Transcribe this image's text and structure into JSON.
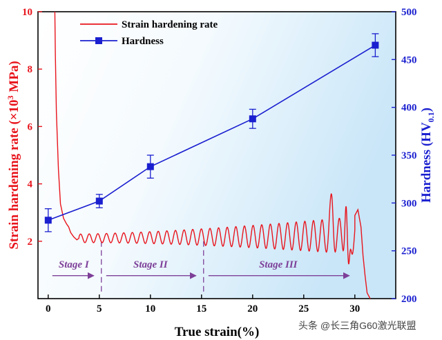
{
  "chart_data": {
    "type": "line",
    "xlabel": "True strain(%)",
    "ylabel_left": {
      "base": "Strain hardening rate (×10",
      "sup": "3",
      "tail": " MPa)"
    },
    "ylabel_right": {
      "base": "Hardness (HV",
      "sub": "0.1",
      "tail": ")"
    },
    "x_ticks": [
      0,
      5,
      10,
      15,
      20,
      25,
      30
    ],
    "y_left_ticks": [
      2,
      4,
      6,
      8,
      10
    ],
    "y_right_ticks": [
      200,
      250,
      300,
      350,
      400,
      450,
      500
    ],
    "x_range": [
      -1,
      34
    ],
    "y_left_range": [
      0,
      10
    ],
    "y_right_range": [
      200,
      500
    ],
    "grid": false,
    "legend": {
      "placement": "top-left",
      "entries": [
        {
          "label": "Strain hardening rate",
          "color": "#e8141c",
          "style": "line"
        },
        {
          "label": "Hardness",
          "color": "#1a1fcf",
          "style": "line-square"
        }
      ]
    },
    "series": [
      {
        "name": "Hardness",
        "axis": "right",
        "color": "#1a1fcf",
        "x": [
          0,
          5,
          10,
          20,
          32
        ],
        "y": [
          282,
          302,
          338,
          388,
          465
        ],
        "error": [
          12,
          7,
          12,
          10,
          12
        ]
      },
      {
        "name": "Strain hardening rate",
        "axis": "left",
        "color": "#e8141c",
        "x": [
          0.65,
          0.7,
          0.8,
          1.0,
          1.2,
          1.5,
          1.8,
          2.0,
          2.2,
          2.5,
          2.8,
          3.0,
          30.0,
          30.3,
          30.6,
          30.8,
          31.0,
          31.2,
          31.5
        ],
        "y": [
          10.0,
          8.5,
          6.5,
          4.5,
          3.3,
          2.8,
          2.6,
          2.5,
          2.3,
          2.15,
          2.05,
          2.1,
          2.9,
          3.1,
          2.5,
          1.5,
          0.8,
          0.2,
          0.0
        ]
      }
    ],
    "oscillation": {
      "x_start": 3.0,
      "x_end": 30.0,
      "cycles": 32,
      "baseline": [
        2.1,
        2.2
      ],
      "amplitude_start": 0.15,
      "amplitude_end": 0.65,
      "spikes": [
        {
          "x": 27.7,
          "y": 3.65
        },
        {
          "x": 29.2,
          "y": 3.65
        },
        {
          "x": 29.4,
          "y": 1.2
        }
      ]
    },
    "stages": [
      {
        "label": "Stage I",
        "x_start": 0,
        "x_end": 5
      },
      {
        "label": "Stage II",
        "x_start": 5,
        "x_end": 15
      },
      {
        "label": "Stage III",
        "x_start": 15,
        "x_end": 30
      }
    ],
    "stage_boundaries": [
      5.2,
      15.2
    ]
  },
  "watermark": "头条 @长三角G60激光联盟",
  "colors": {
    "left_axis": "#e8141c",
    "right_axis": "#1a1fcf",
    "stage": "#7d3f98",
    "background_top": "#ffffff",
    "background_right": "#c9e6f8"
  }
}
